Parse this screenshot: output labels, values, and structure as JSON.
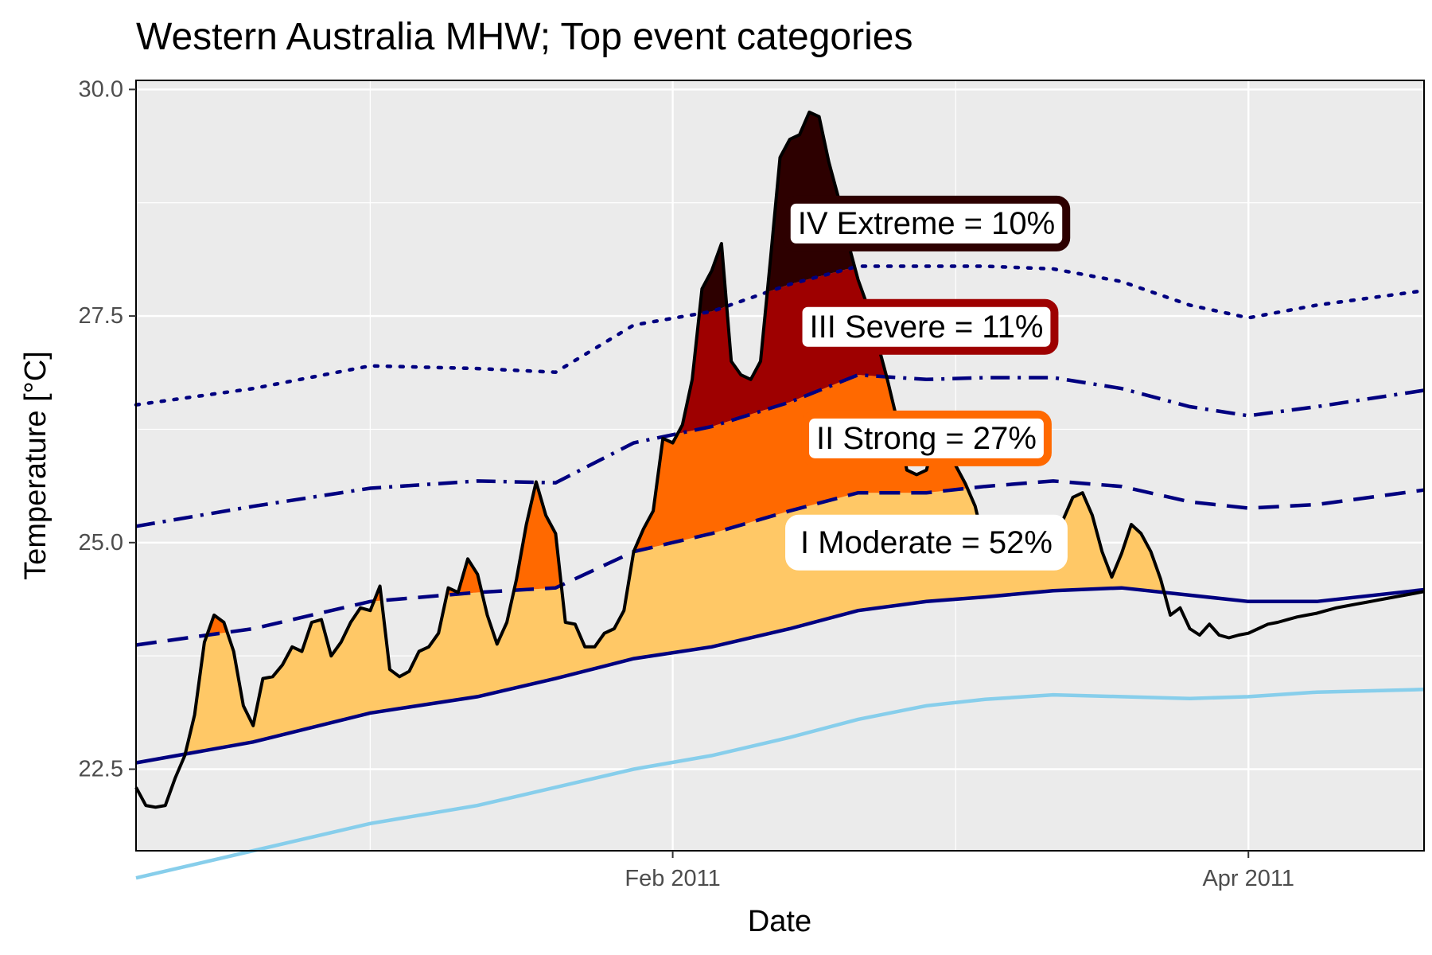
{
  "chart_data": {
    "type": "area",
    "title": "Western Australia MHW; Top event categories",
    "xlabel": "Date",
    "ylabel": "Temperature [°C]",
    "xlim": [
      "2010-12-08",
      "2011-04-19"
    ],
    "ylim": [
      21.6,
      30.1
    ],
    "yticks": [
      22.5,
      25.0,
      27.5,
      30.0
    ],
    "ytick_labels": [
      "22.5",
      "25.0",
      "27.5",
      "30.0"
    ],
    "xticks": [
      "2011-02-01",
      "2011-04-01"
    ],
    "xtick_labels": [
      "Feb 2011",
      "Apr 2011"
    ],
    "x_minor_grid": [
      "2011-01-01",
      "2011-03-02"
    ],
    "grid": true,
    "background": "#ebebeb",
    "colors": {
      "moderate": "#ffc866",
      "strong": "#ff6900",
      "severe": "#9e0000",
      "extreme": "#2d0000",
      "temp": "#000000",
      "thresh": "#000080",
      "clim": "#87ceeb"
    },
    "categories": [
      {
        "name": "moderate",
        "label": "I Moderate = 52%",
        "date": "2011-02-27",
        "y": 25.0,
        "border": "#ffffff"
      },
      {
        "name": "strong",
        "label": "II Strong = 27%",
        "date": "2011-02-27",
        "y": 26.15,
        "border": "#ff6900"
      },
      {
        "name": "severe",
        "label": "III Severe = 11%",
        "date": "2011-02-27",
        "y": 27.38,
        "border": "#9e0000"
      },
      {
        "name": "extreme",
        "label": "IV Extreme = 10%",
        "date": "2011-02-27",
        "y": 28.52,
        "border": "#2d0000"
      }
    ],
    "series": [
      {
        "name": "temp",
        "x": [
          "2010-12-08",
          "2010-12-09",
          "2010-12-10",
          "2010-12-11",
          "2010-12-12",
          "2010-12-13",
          "2010-12-14",
          "2010-12-15",
          "2010-12-16",
          "2010-12-17",
          "2010-12-18",
          "2010-12-19",
          "2010-12-20",
          "2010-12-21",
          "2010-12-22",
          "2010-12-23",
          "2010-12-24",
          "2010-12-25",
          "2010-12-26",
          "2010-12-27",
          "2010-12-28",
          "2010-12-29",
          "2010-12-30",
          "2010-12-31",
          "2011-01-01",
          "2011-01-02",
          "2011-01-03",
          "2011-01-04",
          "2011-01-05",
          "2011-01-06",
          "2011-01-07",
          "2011-01-08",
          "2011-01-09",
          "2011-01-10",
          "2011-01-11",
          "2011-01-12",
          "2011-01-13",
          "2011-01-14",
          "2011-01-15",
          "2011-01-16",
          "2011-01-17",
          "2011-01-18",
          "2011-01-19",
          "2011-01-20",
          "2011-01-21",
          "2011-01-22",
          "2011-01-23",
          "2011-01-24",
          "2011-01-25",
          "2011-01-26",
          "2011-01-27",
          "2011-01-28",
          "2011-01-29",
          "2011-01-30",
          "2011-01-31",
          "2011-02-01",
          "2011-02-02",
          "2011-02-03",
          "2011-02-04",
          "2011-02-05",
          "2011-02-06",
          "2011-02-07",
          "2011-02-08",
          "2011-02-09",
          "2011-02-10",
          "2011-02-11",
          "2011-02-12",
          "2011-02-13",
          "2011-02-14",
          "2011-02-15",
          "2011-02-16",
          "2011-02-17",
          "2011-02-18",
          "2011-02-19",
          "2011-02-20",
          "2011-02-21",
          "2011-02-22",
          "2011-02-23",
          "2011-02-24",
          "2011-02-25",
          "2011-02-26",
          "2011-02-27",
          "2011-02-28",
          "2011-03-01",
          "2011-03-02",
          "2011-03-03",
          "2011-03-04",
          "2011-03-05",
          "2011-03-06",
          "2011-03-07",
          "2011-03-08",
          "2011-03-09",
          "2011-03-10",
          "2011-03-11",
          "2011-03-12",
          "2011-03-13",
          "2011-03-14",
          "2011-03-15",
          "2011-03-16",
          "2011-03-17",
          "2011-03-18",
          "2011-03-19",
          "2011-03-20",
          "2011-03-21",
          "2011-03-22",
          "2011-03-23",
          "2011-03-24",
          "2011-03-25",
          "2011-03-26",
          "2011-03-27",
          "2011-03-28",
          "2011-03-29",
          "2011-03-30",
          "2011-03-31",
          "2011-04-01",
          "2011-04-02",
          "2011-04-03",
          "2011-04-04",
          "2011-04-05",
          "2011-04-06",
          "2011-04-07",
          "2011-04-08",
          "2011-04-09",
          "2011-04-10",
          "2011-04-11",
          "2011-04-12",
          "2011-04-13",
          "2011-04-14",
          "2011-04-15",
          "2011-04-16",
          "2011-04-17",
          "2011-04-18",
          "2011-04-19"
        ],
        "y": [
          22.3,
          22.1,
          22.08,
          22.1,
          22.4,
          22.65,
          23.1,
          23.9,
          24.2,
          24.12,
          23.8,
          23.2,
          22.98,
          23.5,
          23.52,
          23.65,
          23.85,
          23.8,
          24.12,
          24.15,
          23.75,
          23.9,
          24.12,
          24.28,
          24.25,
          24.52,
          23.6,
          23.52,
          23.58,
          23.8,
          23.85,
          24.0,
          24.5,
          24.45,
          24.82,
          24.65,
          24.2,
          23.88,
          24.12,
          24.6,
          25.2,
          25.67,
          25.3,
          25.1,
          24.12,
          24.1,
          23.85,
          23.85,
          24.0,
          24.05,
          24.25,
          24.9,
          25.15,
          25.35,
          26.15,
          26.1,
          26.3,
          26.8,
          27.8,
          28.0,
          28.3,
          27.0,
          26.85,
          26.8,
          27.0,
          28.1,
          29.25,
          29.45,
          29.5,
          29.75,
          29.7,
          29.2,
          28.8,
          28.3,
          27.9,
          27.6,
          27.2,
          26.8,
          26.35,
          25.8,
          25.75,
          25.8,
          26.2,
          26.0,
          25.85,
          25.65,
          25.4,
          24.95,
          24.95,
          25.25,
          25.15,
          25.2,
          25.22,
          25.12,
          25.1,
          25.25,
          25.5,
          25.55,
          25.3,
          24.9,
          24.62,
          24.88,
          25.2,
          25.1,
          24.9,
          24.6,
          24.2,
          24.28,
          24.05,
          23.98,
          24.1,
          23.98,
          23.95,
          23.98,
          24.0,
          24.05,
          24.1,
          24.12,
          24.15,
          24.18,
          24.2,
          24.22,
          24.25,
          24.28,
          24.3,
          24.32,
          24.34,
          24.36,
          24.38,
          24.4,
          24.42,
          24.44,
          24.46
        ]
      },
      {
        "name": "thresh",
        "x": [
          "2010-12-08",
          "2010-12-20",
          "2011-01-01",
          "2011-01-12",
          "2011-01-20",
          "2011-01-28",
          "2011-02-05",
          "2011-02-13",
          "2011-02-20",
          "2011-02-27",
          "2011-03-05",
          "2011-03-12",
          "2011-03-19",
          "2011-03-26",
          "2011-04-01",
          "2011-04-08",
          "2011-04-19"
        ],
        "y": [
          22.57,
          22.8,
          23.12,
          23.3,
          23.5,
          23.72,
          23.85,
          24.05,
          24.25,
          24.35,
          24.4,
          24.47,
          24.5,
          24.42,
          24.35,
          24.35,
          24.48
        ]
      },
      {
        "name": "clim",
        "x": [
          "2010-12-08",
          "2010-12-20",
          "2011-01-01",
          "2011-01-12",
          "2011-01-20",
          "2011-01-28",
          "2011-02-05",
          "2011-02-13",
          "2011-02-20",
          "2011-02-27",
          "2011-03-05",
          "2011-03-12",
          "2011-03-19",
          "2011-03-26",
          "2011-04-01",
          "2011-04-08",
          "2011-04-19"
        ],
        "y": [
          21.3,
          21.6,
          21.9,
          22.1,
          22.3,
          22.5,
          22.65,
          22.85,
          23.05,
          23.2,
          23.27,
          23.32,
          23.3,
          23.28,
          23.3,
          23.35,
          23.38
        ]
      },
      {
        "name": "mult2",
        "x": [
          "2010-12-08",
          "2010-12-20",
          "2011-01-01",
          "2011-01-12",
          "2011-01-20",
          "2011-01-28",
          "2011-02-05",
          "2011-02-13",
          "2011-02-20",
          "2011-02-27",
          "2011-03-05",
          "2011-03-12",
          "2011-03-19",
          "2011-03-26",
          "2011-04-01",
          "2011-04-08",
          "2011-04-19"
        ],
        "y": [
          23.87,
          24.05,
          24.35,
          24.45,
          24.5,
          24.9,
          25.1,
          25.35,
          25.55,
          25.55,
          25.62,
          25.68,
          25.62,
          25.45,
          25.38,
          25.42,
          25.58
        ]
      },
      {
        "name": "mult3",
        "x": [
          "2010-12-08",
          "2010-12-20",
          "2011-01-01",
          "2011-01-12",
          "2011-01-20",
          "2011-01-28",
          "2011-02-05",
          "2011-02-13",
          "2011-02-20",
          "2011-02-27",
          "2011-03-05",
          "2011-03-12",
          "2011-03-19",
          "2011-03-26",
          "2011-04-01",
          "2011-04-08",
          "2011-04-19"
        ],
        "y": [
          25.18,
          25.4,
          25.6,
          25.68,
          25.66,
          26.1,
          26.28,
          26.55,
          26.85,
          26.8,
          26.82,
          26.82,
          26.7,
          26.5,
          26.4,
          26.5,
          26.68
        ]
      },
      {
        "name": "mult4",
        "x": [
          "2010-12-08",
          "2010-12-20",
          "2011-01-01",
          "2011-01-12",
          "2011-01-20",
          "2011-01-28",
          "2011-02-05",
          "2011-02-13",
          "2011-02-20",
          "2011-02-27",
          "2011-03-05",
          "2011-03-12",
          "2011-03-19",
          "2011-03-26",
          "2011-04-01",
          "2011-04-08",
          "2011-04-19"
        ],
        "y": [
          26.52,
          26.7,
          26.95,
          26.92,
          26.88,
          27.4,
          27.55,
          27.85,
          28.05,
          28.05,
          28.05,
          28.02,
          27.88,
          27.62,
          27.48,
          27.62,
          27.78
        ]
      }
    ]
  }
}
